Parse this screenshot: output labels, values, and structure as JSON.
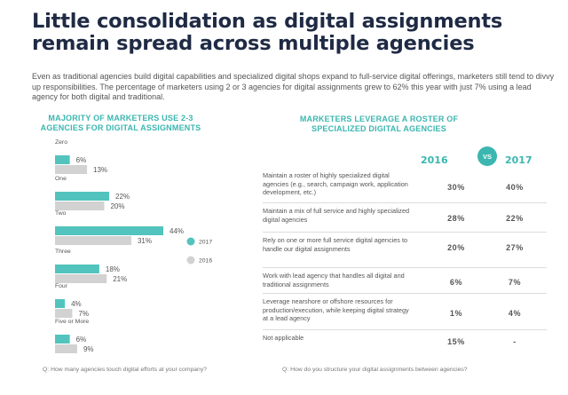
{
  "title": "Little consolidation as digital assignments remain spread across multiple agencies",
  "intro": "Even as traditional agencies build digital capabilities and specialized digital shops expand to full-service digital offerings, marketers still tend to divvy up responsibilities. The percentage of marketers using 2 or 3 agencies for digital assignments grew to 62% this year with just 7% using a lead agency for both digital and traditional.",
  "colors": {
    "accent": "#3bb6b0",
    "series_2017": "#52c4bd",
    "series_2016": "#d2d2d2",
    "title": "#1f2a44"
  },
  "left": {
    "heading": "MAJORITY OF MARKETERS USE 2-3 AGENCIES FOR DIGITAL ASSIGNMENTS",
    "question": "Q: How many agencies touch digital efforts at your company?"
  },
  "chart_data": {
    "type": "bar",
    "orientation": "horizontal",
    "categories": [
      "Zero",
      "One",
      "Two",
      "Three",
      "Four",
      "Five or More"
    ],
    "series": [
      {
        "name": "2017",
        "values": [
          6,
          22,
          44,
          18,
          4,
          6
        ]
      },
      {
        "name": "2016",
        "values": [
          13,
          20,
          31,
          21,
          7,
          9
        ]
      }
    ],
    "value_suffix": "%",
    "xlim": [
      0,
      50
    ],
    "grid": false,
    "legend": "right"
  },
  "right": {
    "heading": "MARKETERS LEVERAGE A ROSTER OF SPECIALIZED DIGITAL AGENCIES",
    "year_a": "2016",
    "year_b": "2017",
    "vs": "VS",
    "rows": [
      {
        "label": "Maintain a roster of highly specialized digital agencies (e.g., search, campaign work, application development, etc.)",
        "v2016": "30%",
        "v2017": "40%"
      },
      {
        "label": "Maintain a mix of full service and highly specialized digital agencies",
        "v2016": "28%",
        "v2017": "22%"
      },
      {
        "label": "Rely on one or more full service digital agencies to handle our digital assignments",
        "v2016": "20%",
        "v2017": "27%"
      },
      {
        "label": "Work with lead agency that handles all digital and traditional assignments",
        "v2016": "6%",
        "v2017": "7%"
      },
      {
        "label": "Leverage nearshore or offshore resources for production/execution, while keeping digital strategy at a lead agency",
        "v2016": "1%",
        "v2017": "4%"
      },
      {
        "label": "Not applicable",
        "v2016": "15%",
        "v2017": "-"
      }
    ],
    "question": "Q: How do you structure your digital assignments between agencies?"
  }
}
